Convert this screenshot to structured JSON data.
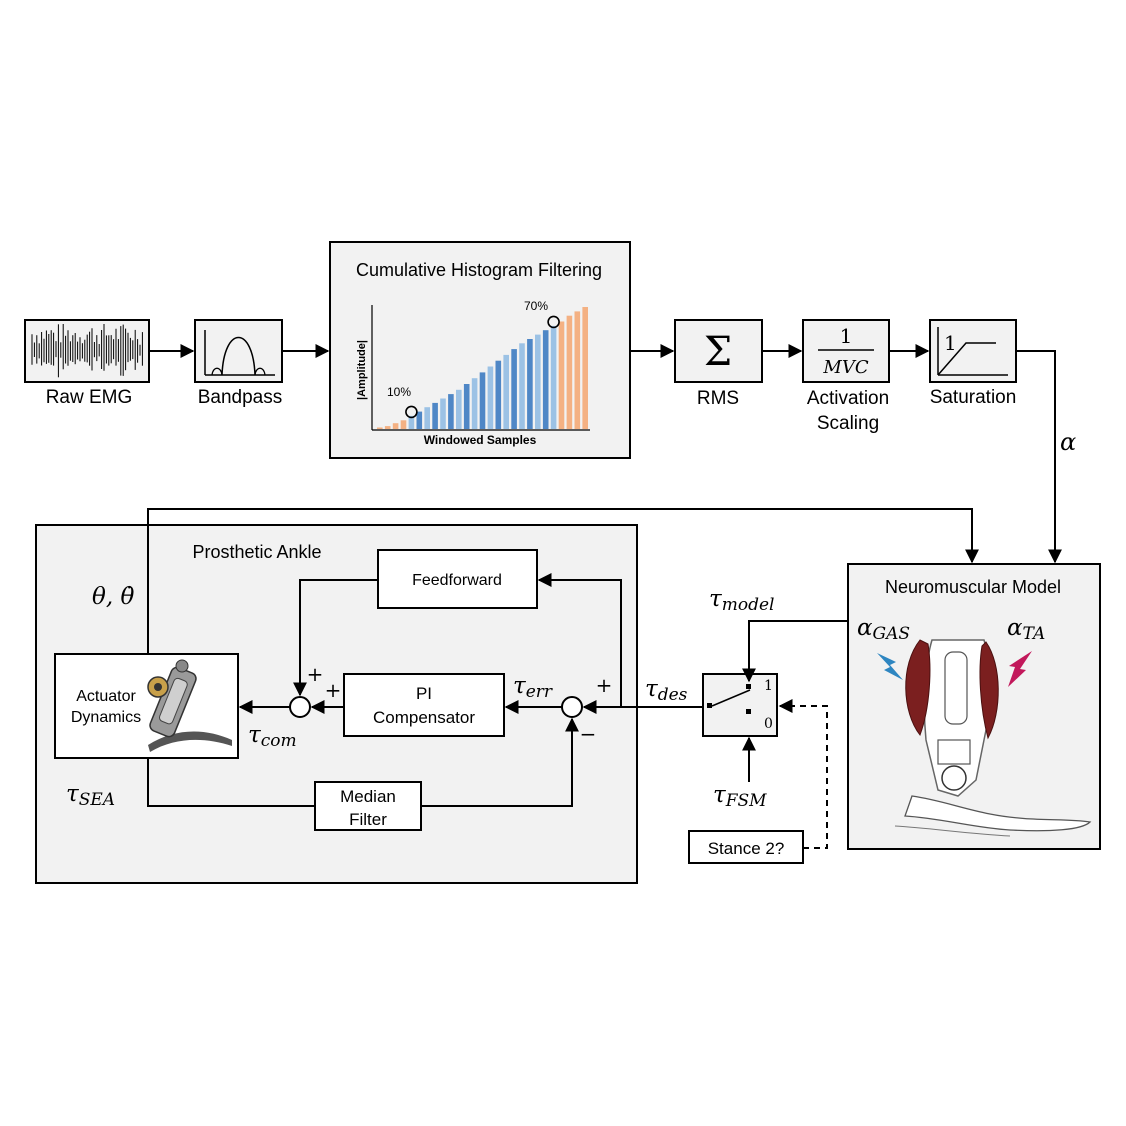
{
  "signal_chain": {
    "raw_emg": "Raw EMG",
    "bandpass": "Bandpass",
    "histogram": {
      "title": "Cumulative Histogram Filtering",
      "ylabel": "|Amplitude|",
      "xlabel": "Windowed Samples",
      "low_mark": "10%",
      "high_mark": "70%"
    },
    "rms": {
      "symbol": "Σ",
      "label": "RMS"
    },
    "activation_scaling": {
      "numerator": "1",
      "denominator": "MVC",
      "label_line1": "Activation",
      "label_line2": "Scaling"
    },
    "saturation": {
      "level": "1",
      "label": "Saturation"
    },
    "alpha": "α"
  },
  "prosthetic_ankle": {
    "title": "Prosthetic Ankle",
    "actuator_line1": "Actuator",
    "actuator_line2": "Dynamics",
    "feedforward": "Feedforward",
    "pi_line1": "PI",
    "pi_line2": "Compensator",
    "median_line1": "Median",
    "median_line2": "Filter",
    "theta": "θ, θ̇",
    "tau_err_base": "τ",
    "tau_err_sub": "err",
    "tau_com_base": "τ",
    "tau_com_sub": "com",
    "tau_sea_base": "τ",
    "tau_sea_sub": "SEA",
    "sum1_plus_top": "+",
    "sum1_plus_right": "+",
    "sum2_plus": "+",
    "sum2_minus": "−"
  },
  "switch": {
    "tau_des_base": "τ",
    "tau_des_sub": "des",
    "tau_model_base": "τ",
    "tau_model_sub": "model",
    "tau_fsm_base": "τ",
    "tau_fsm_sub": "FSM",
    "pos_1": "1",
    "pos_0": "0",
    "stance_query": "Stance 2?"
  },
  "neuromuscular": {
    "title": "Neuromuscular Model",
    "alpha_gas_base": "α",
    "alpha_gas_sub": "GAS",
    "alpha_ta_base": "α",
    "alpha_ta_sub": "TA"
  },
  "colors": {
    "panel_bg": "#f2f2f2",
    "bar_orange": "#f4b183",
    "bar_blue_dark": "#4f87c6",
    "bar_blue_light": "#9cc2e5",
    "bolt_blue": "#2e86c1",
    "bolt_red": "#c2185b",
    "muscle": "#7b1f1f"
  },
  "chart_data": {
    "type": "bar",
    "ylabel": "|Amplitude|",
    "xlabel": "Windowed Samples",
    "values": [
      1,
      2,
      4,
      6,
      9,
      12,
      15,
      18,
      21,
      24,
      27,
      31,
      35,
      39,
      43,
      47,
      51,
      55,
      59,
      62,
      65,
      68,
      71,
      74,
      78,
      81,
      84
    ],
    "groups": [
      "orange",
      "orange",
      "orange",
      "orange",
      "light",
      "dark",
      "light",
      "dark",
      "light",
      "dark",
      "light",
      "dark",
      "light",
      "dark",
      "light",
      "dark",
      "light",
      "dark",
      "light",
      "dark",
      "light",
      "dark",
      "light",
      "orange",
      "orange",
      "orange",
      "orange"
    ],
    "markers": [
      {
        "label": "10%",
        "index": 4
      },
      {
        "label": "70%",
        "index": 22
      }
    ]
  }
}
